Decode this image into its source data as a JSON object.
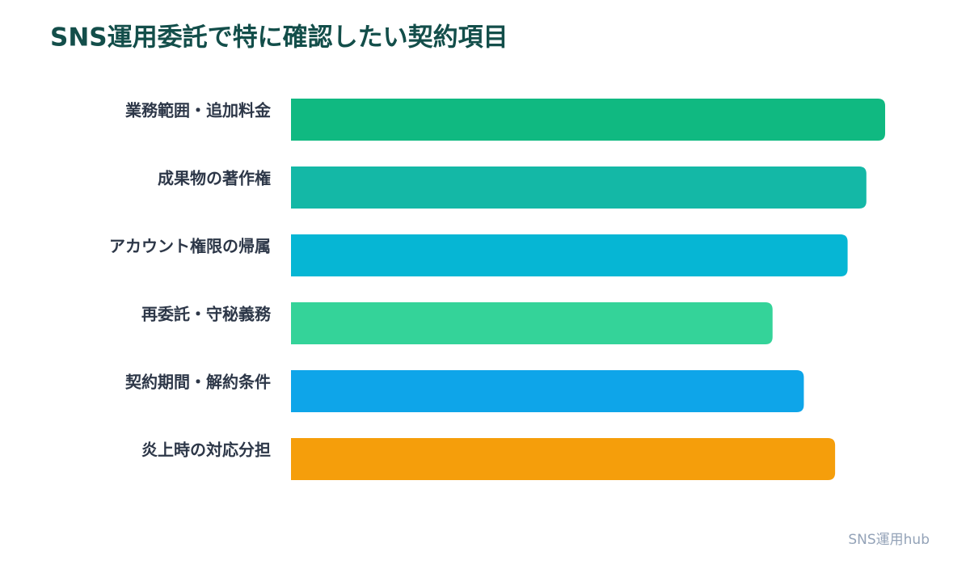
{
  "chart_data": {
    "type": "bar",
    "orientation": "horizontal",
    "title": "SNS運用委託で特に確認したい契約項目",
    "categories": [
      "業務範囲・追加料金",
      "成果物の著作権",
      "アカウント権限の帰属",
      "再委託・守秘義務",
      "契約期間・解約条件",
      "炎上時の対応分担"
    ],
    "values": [
      95,
      92,
      89,
      77,
      82,
      87
    ],
    "colors": [
      "#10b981",
      "#14b8a6",
      "#06b6d4",
      "#34d399",
      "#0ea5e9",
      "#f59e0b"
    ],
    "xlim": [
      0,
      100
    ],
    "source": "SNS運用hub"
  }
}
